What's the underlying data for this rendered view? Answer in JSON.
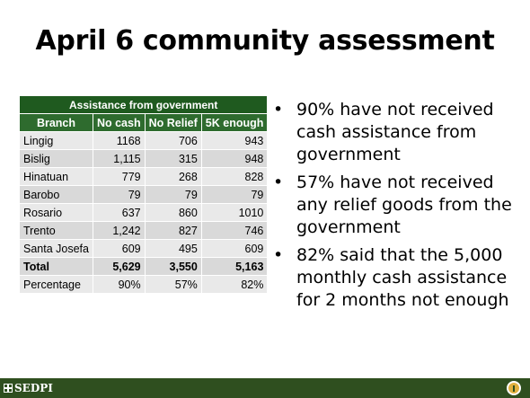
{
  "slide": {
    "title": "April 6 community assessment"
  },
  "table": {
    "caption": "Assistance from government",
    "headers": [
      "Branch",
      "No cash",
      "No Relief",
      "5K enough"
    ],
    "rows": [
      [
        "Lingig",
        "1168",
        "706",
        "943"
      ],
      [
        "Bislig",
        "1,115",
        "315",
        "948"
      ],
      [
        "Hinatuan",
        "779",
        "268",
        "828"
      ],
      [
        "Barobo",
        "79",
        "79",
        "79"
      ],
      [
        "Rosario",
        "637",
        "860",
        "1010"
      ],
      [
        "Trento",
        "1,242",
        "827",
        "746"
      ],
      [
        "Santa Josefa",
        "609",
        "495",
        "609"
      ]
    ],
    "total": [
      "Total",
      "5,629",
      "3,550",
      "5,163"
    ],
    "percentage": [
      "Percentage",
      "90%",
      "57%",
      "82%"
    ]
  },
  "bullets": [
    "90% have not received cash assistance from government",
    "57% have not received any relief goods from the government",
    "82% said that the 5,000 monthly cash assistance for 2 months not enough"
  ],
  "footer": {
    "logo_text": "SEDPI"
  },
  "colors": {
    "header_green": "#2e6b2e",
    "footer_green": "#2f4f1f"
  }
}
